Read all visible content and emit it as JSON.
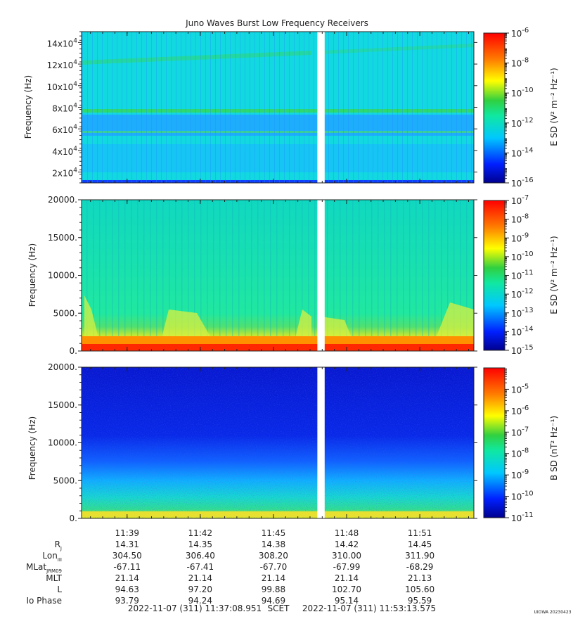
{
  "chart_data": [
    {
      "type": "heatmap",
      "title": "Juno Waves Burst Low Frequency Receivers",
      "ylabel": "Frequency (Hz)",
      "ylim": [
        10000,
        150000
      ],
      "yticks": [
        20000,
        40000,
        60000,
        80000,
        100000,
        120000,
        140000
      ],
      "ytick_mantissa": [
        "2x10",
        "4x10",
        "6x10",
        "8x10",
        "10x10",
        "12x10",
        "14x10"
      ],
      "ytick_exponent": "4",
      "colorbar_label": "E SD (V² m⁻² Hz⁻¹)",
      "colorbar_range_exp": [
        -16,
        -6
      ],
      "colorbar_ticks_exp": [
        "-16",
        "-14",
        "-12",
        "-10",
        "-8",
        "-6"
      ],
      "colorscale": "jet",
      "data_gap_x": [
        "11:46:48",
        "11:47:06"
      ]
    },
    {
      "type": "heatmap",
      "ylabel": "Frequency (Hz)",
      "ylim": [
        0,
        20000
      ],
      "yticks": [
        0,
        5000,
        10000,
        15000,
        20000
      ],
      "ytick_labels": [
        "0.",
        "5000.",
        "10000.",
        "15000.",
        "20000."
      ],
      "colorbar_label": "E SD (V² m⁻² Hz⁻¹)",
      "colorbar_range_exp": [
        -15,
        -7
      ],
      "colorbar_ticks_exp": [
        "-15",
        "-14",
        "-13",
        "-12",
        "-11",
        "-10",
        "-9",
        "-8",
        "-7"
      ],
      "colorscale": "jet"
    },
    {
      "type": "heatmap",
      "ylabel": "Frequency (Hz)",
      "ylim": [
        0,
        20000
      ],
      "yticks": [
        0,
        5000,
        10000,
        15000,
        20000
      ],
      "ytick_labels": [
        "0.",
        "5000.",
        "10000.",
        "15000.",
        "20000."
      ],
      "colorbar_label": "B SD (nT² Hz⁻¹)",
      "colorbar_range_exp": [
        -11,
        -4
      ],
      "colorbar_ticks_exp": [
        "-11",
        "-10",
        "-9",
        "-8",
        "-7",
        "-6",
        "-5"
      ],
      "colorscale": "jet"
    }
  ],
  "time_axis": {
    "start": "11:37:08",
    "end": "11:53:13",
    "tick_labels": [
      "11:39",
      "11:42",
      "11:45",
      "11:48",
      "11:51"
    ],
    "tick_times": [
      "11:39:00",
      "11:42:00",
      "11:45:00",
      "11:48:00",
      "11:51:00"
    ]
  },
  "ephemeris": {
    "rows": [
      {
        "label": "R",
        "sub": "J",
        "values": [
          "14.31",
          "14.35",
          "14.38",
          "14.42",
          "14.45"
        ]
      },
      {
        "label": "Lon",
        "sub": "III",
        "values": [
          "304.50",
          "306.40",
          "308.20",
          "310.00",
          "311.90"
        ]
      },
      {
        "label": "MLat",
        "sub": "JRM09",
        "values": [
          "-67.11",
          "-67.41",
          "-67.70",
          "-67.99",
          "-68.29"
        ]
      },
      {
        "label": "MLT",
        "sub": "",
        "values": [
          "21.14",
          "21.14",
          "21.14",
          "21.14",
          "21.13"
        ]
      },
      {
        "label": "L",
        "sub": "",
        "values": [
          "94.63",
          "97.20",
          "99.88",
          "102.70",
          "105.60"
        ]
      },
      {
        "label": "Io Phase",
        "sub": "",
        "values": [
          "93.79",
          "94.24",
          "94.69",
          "95.14",
          "95.59"
        ]
      }
    ]
  },
  "footer": {
    "start_time": "2022-11-07 (311) 11:37:08.951",
    "scet": "SCET",
    "end_time": "2022-11-07 (311) 11:53:13.575",
    "credit": "UIOWA 20230423"
  }
}
